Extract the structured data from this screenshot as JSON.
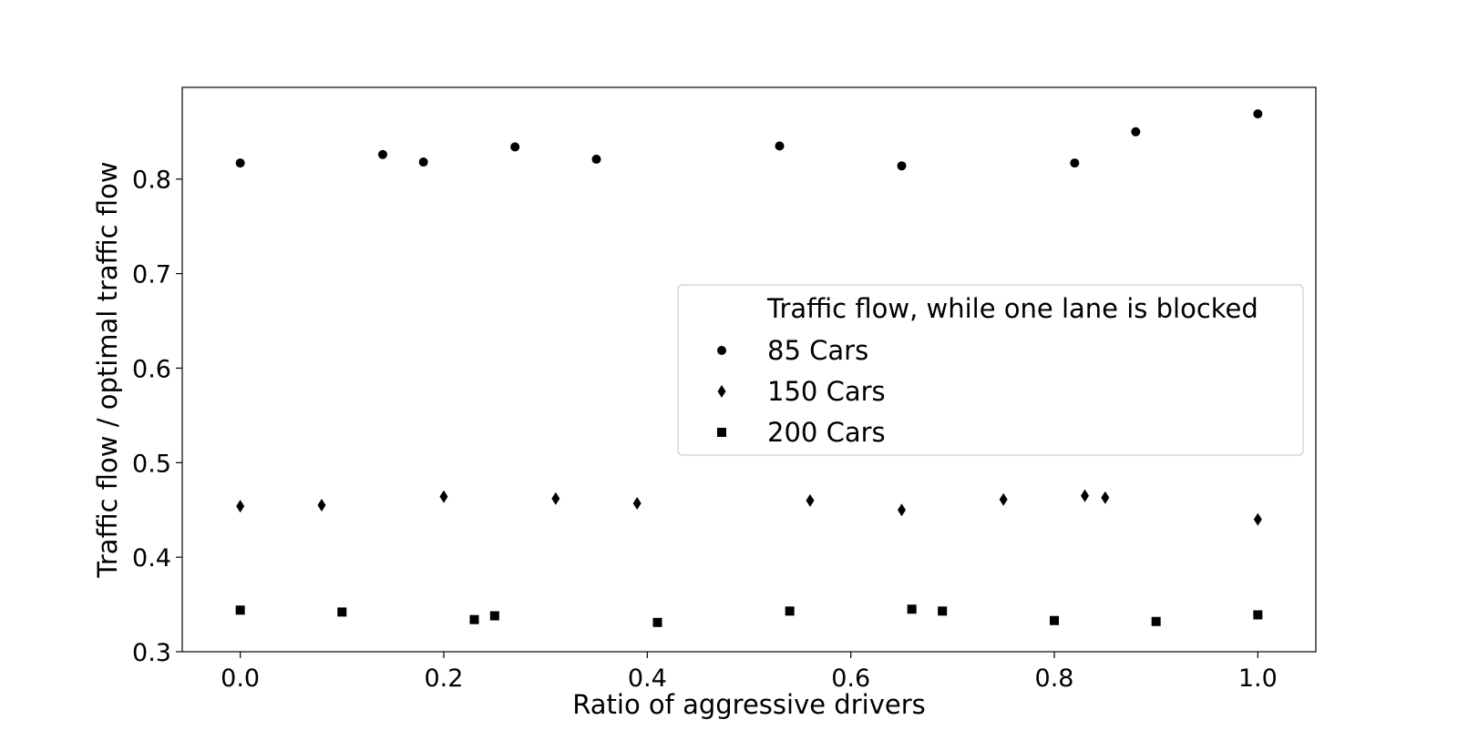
{
  "chart_data": {
    "type": "scatter",
    "title": "",
    "xlabel": "Ratio of aggressive drivers",
    "ylabel": "Traffic flow / optimal traffic flow",
    "xlim": [
      -0.057,
      1.057
    ],
    "ylim": [
      0.3,
      0.897
    ],
    "xticks": [
      0.0,
      0.2,
      0.4,
      0.6,
      0.8,
      1.0
    ],
    "xtick_labels": [
      "0.0",
      "0.2",
      "0.4",
      "0.6",
      "0.8",
      "1.0"
    ],
    "yticks": [
      0.3,
      0.4,
      0.5,
      0.6,
      0.7,
      0.8
    ],
    "ytick_labels": [
      "0.3",
      "0.4",
      "0.5",
      "0.6",
      "0.7",
      "0.8"
    ],
    "grid": false,
    "legend": {
      "title": "Traffic flow, while one lane is blocked",
      "placement": "center-right"
    },
    "series": [
      {
        "name": "85 Cars",
        "marker": "circle",
        "color": "#000000",
        "points": [
          [
            0.0,
            0.817
          ],
          [
            0.14,
            0.826
          ],
          [
            0.18,
            0.818
          ],
          [
            0.27,
            0.834
          ],
          [
            0.35,
            0.821
          ],
          [
            0.53,
            0.835
          ],
          [
            0.65,
            0.814
          ],
          [
            0.82,
            0.817
          ],
          [
            0.88,
            0.85
          ],
          [
            1.0,
            0.869
          ]
        ]
      },
      {
        "name": "150 Cars",
        "marker": "diamond",
        "color": "#000000",
        "points": [
          [
            0.0,
            0.454
          ],
          [
            0.08,
            0.455
          ],
          [
            0.2,
            0.464
          ],
          [
            0.31,
            0.462
          ],
          [
            0.39,
            0.457
          ],
          [
            0.56,
            0.46
          ],
          [
            0.65,
            0.45
          ],
          [
            0.75,
            0.461
          ],
          [
            0.83,
            0.465
          ],
          [
            0.85,
            0.463
          ],
          [
            1.0,
            0.44
          ]
        ]
      },
      {
        "name": "200 Cars",
        "marker": "square",
        "color": "#000000",
        "points": [
          [
            0.0,
            0.344
          ],
          [
            0.1,
            0.342
          ],
          [
            0.23,
            0.334
          ],
          [
            0.25,
            0.338
          ],
          [
            0.41,
            0.331
          ],
          [
            0.54,
            0.343
          ],
          [
            0.66,
            0.345
          ],
          [
            0.69,
            0.343
          ],
          [
            0.8,
            0.333
          ],
          [
            0.9,
            0.332
          ],
          [
            1.0,
            0.339
          ]
        ]
      }
    ]
  }
}
